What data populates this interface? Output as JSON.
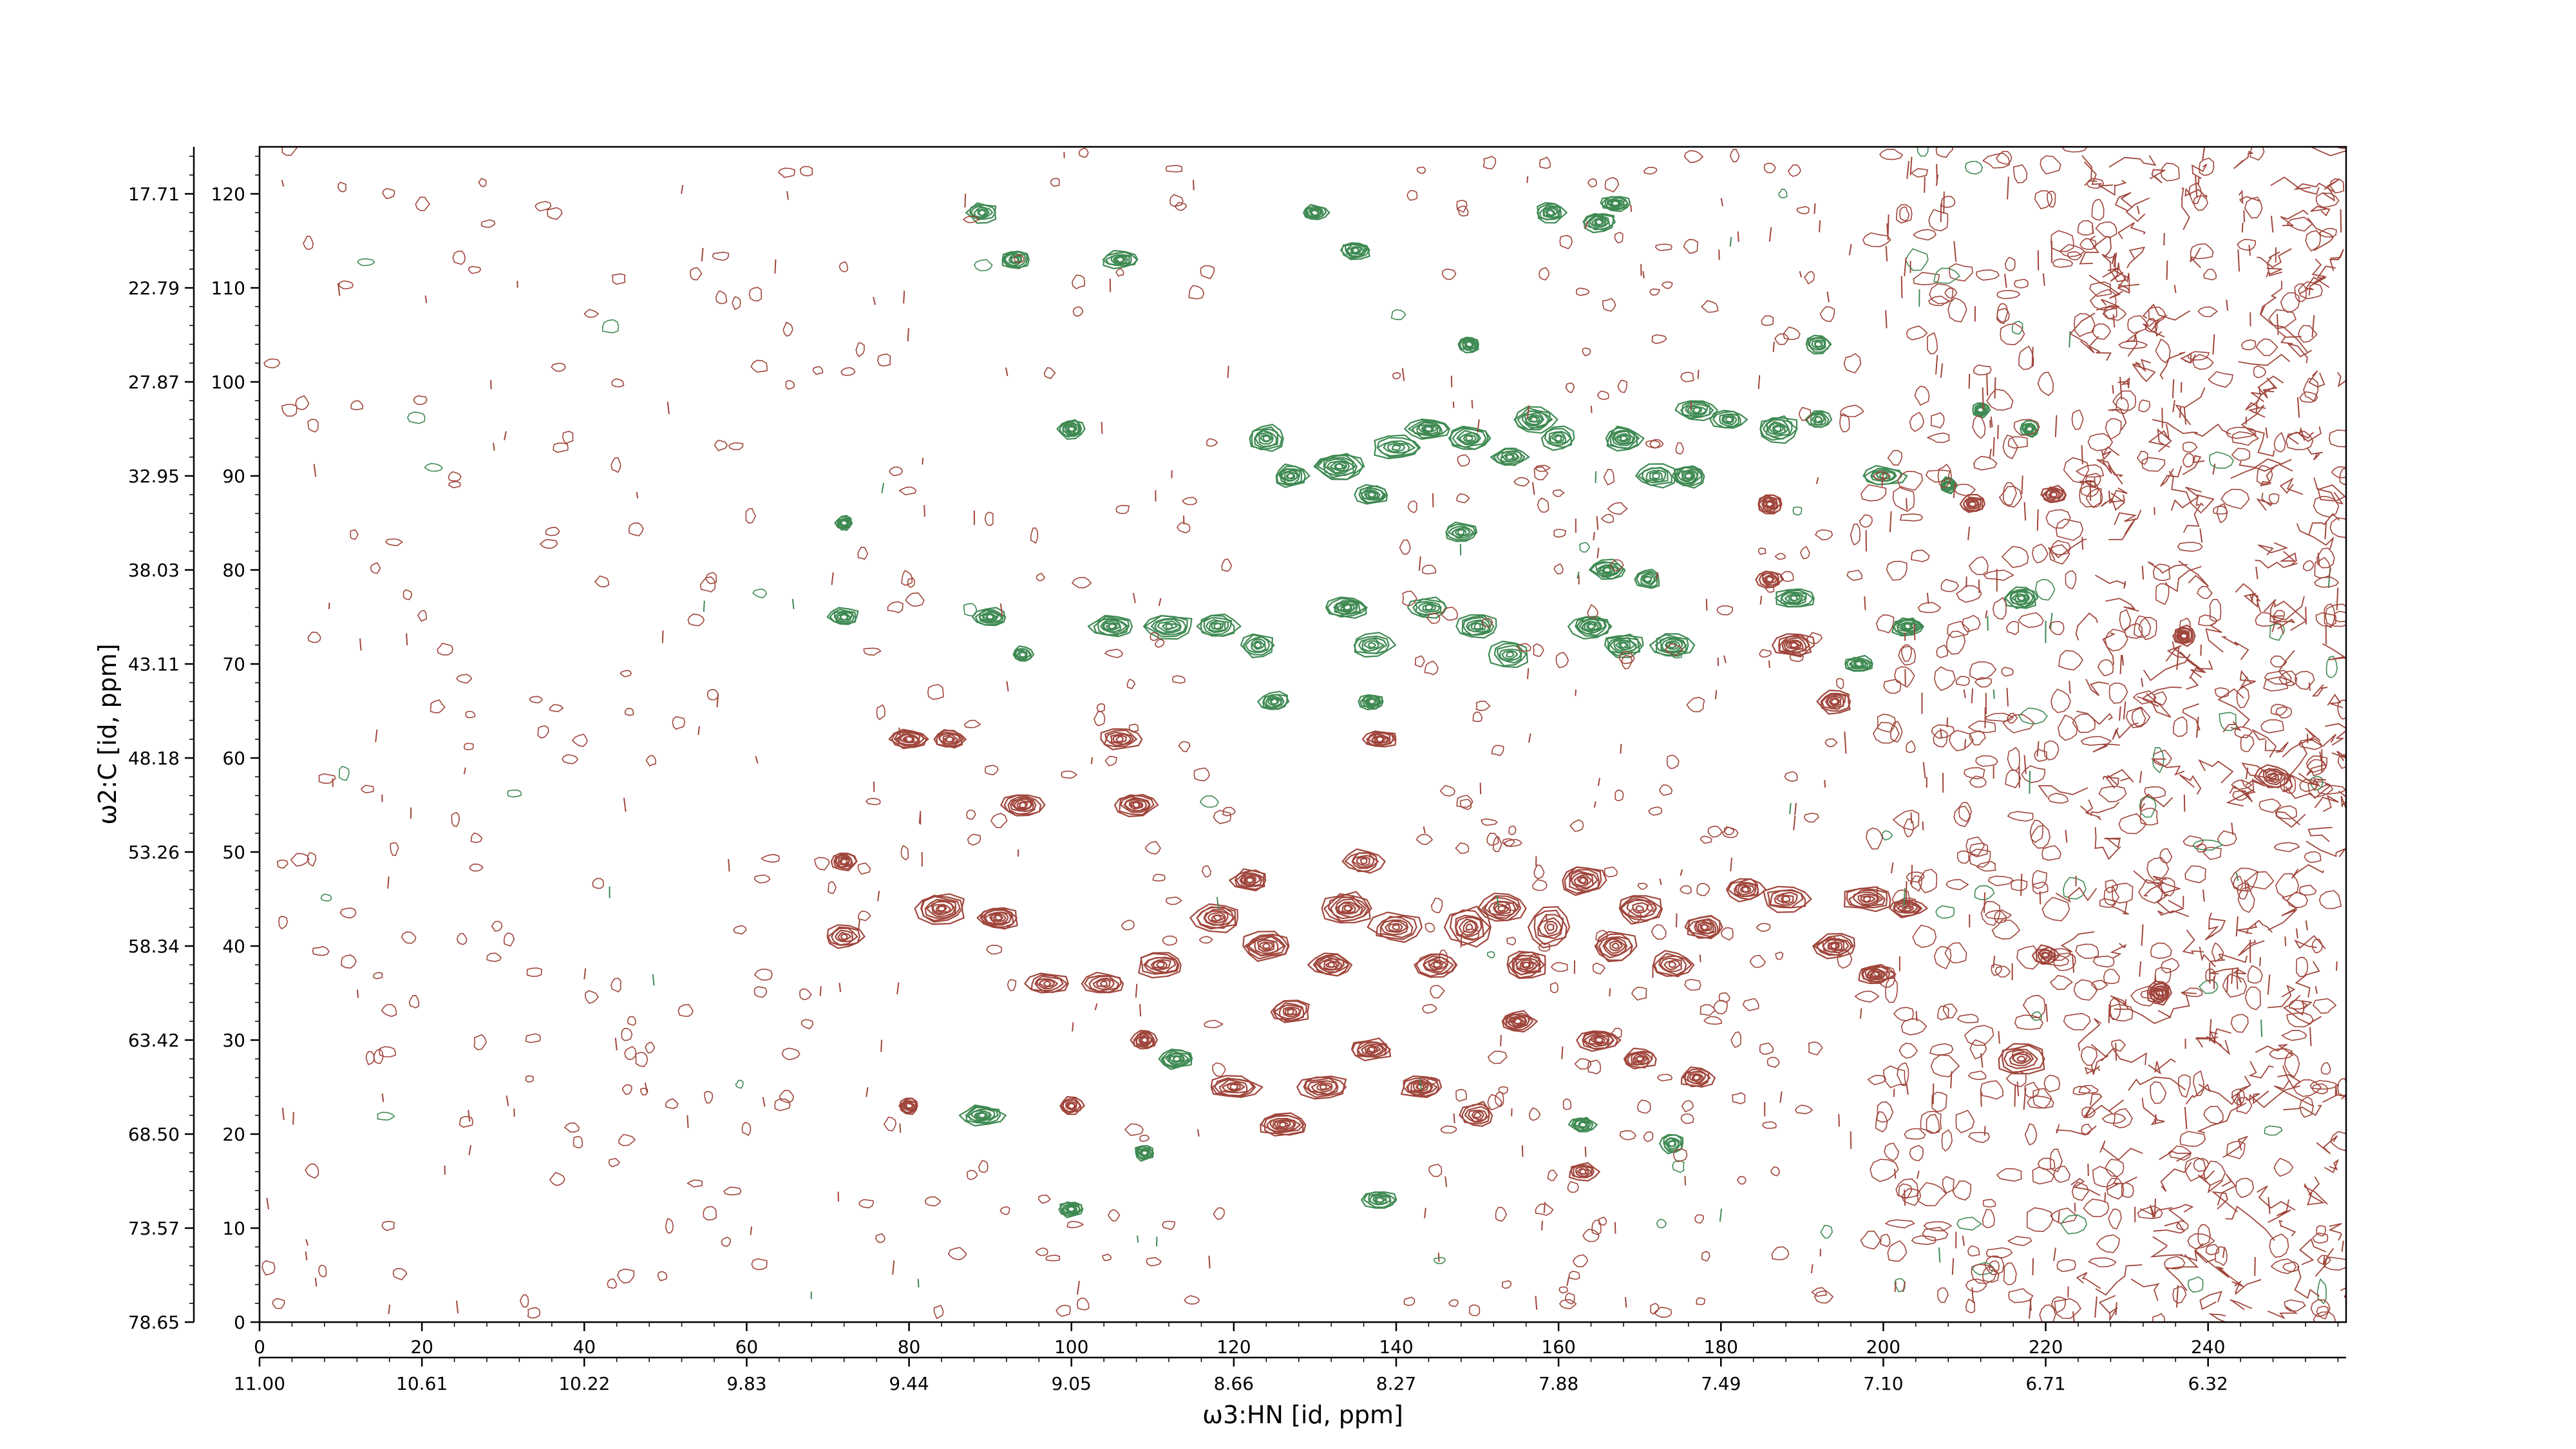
{
  "chart_data": {
    "type": "heatmap",
    "subtype": "2D NMR contour plot",
    "x_axis": {
      "label": "ω3:HN [id, ppm]",
      "index_ticks": [
        "0",
        "20",
        "40",
        "60",
        "80",
        "100",
        "120",
        "140",
        "160",
        "180",
        "200",
        "220",
        "240"
      ],
      "index_range": [
        0,
        257
      ],
      "ppm_ticks": [
        "11.00",
        "10.61",
        "10.22",
        "9.83",
        "9.44",
        "9.05",
        "8.66",
        "8.27",
        "7.88",
        "7.49",
        "7.10",
        "6.71",
        "6.32"
      ]
    },
    "y_axis": {
      "label": "ω2:C [id, ppm]",
      "index_ticks": [
        "0",
        "10",
        "20",
        "30",
        "40",
        "50",
        "60",
        "70",
        "80",
        "90",
        "100",
        "110",
        "120"
      ],
      "index_range": [
        0,
        125
      ],
      "ppm_ticks": [
        "78.65",
        "73.57",
        "68.50",
        "63.42",
        "58.34",
        "53.26",
        "48.18",
        "43.11",
        "38.03",
        "32.95",
        "27.87",
        "22.79",
        "17.71"
      ]
    },
    "series": [
      {
        "sign": "positive",
        "color": "#a0463c",
        "peaks": [
          [
            72,
            41,
            2.2,
            1.2
          ],
          [
            72,
            49,
            1.5,
            0.9
          ],
          [
            84,
            44,
            3.0,
            1.5
          ],
          [
            91,
            43,
            2.5,
            1.2
          ],
          [
            80,
            62,
            2.2,
            1.0
          ],
          [
            85,
            62,
            2.0,
            1.0
          ],
          [
            94,
            55,
            2.5,
            1.2
          ],
          [
            108,
            55,
            2.5,
            1.1
          ],
          [
            97,
            36,
            2.5,
            1.1
          ],
          [
            104,
            36,
            2.5,
            1.1
          ],
          [
            111,
            38,
            3.0,
            1.3
          ],
          [
            118,
            43,
            3.0,
            1.4
          ],
          [
            122,
            47,
            2.2,
            1.1
          ],
          [
            124,
            40,
            3.0,
            1.5
          ],
          [
            127,
            33,
            2.5,
            1.2
          ],
          [
            132,
            38,
            2.5,
            1.2
          ],
          [
            134,
            44,
            3.0,
            1.6
          ],
          [
            136,
            49,
            2.4,
            1.2
          ],
          [
            140,
            42,
            3.0,
            1.5
          ],
          [
            145,
            38,
            2.5,
            1.3
          ],
          [
            149,
            42,
            2.6,
            2.0
          ],
          [
            153,
            44,
            2.6,
            1.5
          ],
          [
            156,
            38,
            2.5,
            1.4
          ],
          [
            159,
            42,
            2.5,
            2.0
          ],
          [
            163,
            47,
            2.6,
            1.5
          ],
          [
            167,
            40,
            2.6,
            1.6
          ],
          [
            170,
            44,
            3.0,
            1.6
          ],
          [
            174,
            38,
            2.5,
            1.4
          ],
          [
            178,
            42,
            2.4,
            1.2
          ],
          [
            183,
            46,
            2.2,
            1.2
          ],
          [
            188,
            45,
            3.0,
            1.3
          ],
          [
            194,
            40,
            2.5,
            1.2
          ],
          [
            198,
            45,
            3.0,
            1.2
          ],
          [
            203,
            44,
            2.2,
            0.9
          ],
          [
            199,
            37,
            2.2,
            1.0
          ],
          [
            106,
            62,
            2.5,
            1.0
          ],
          [
            138,
            62,
            2.0,
            0.9
          ],
          [
            109,
            30,
            1.5,
            1.0
          ],
          [
            120,
            25,
            3.0,
            1.2
          ],
          [
            126,
            21,
            3.0,
            1.2
          ],
          [
            131,
            25,
            3.0,
            1.2
          ],
          [
            137,
            29,
            2.5,
            1.1
          ],
          [
            143,
            25,
            2.5,
            1.1
          ],
          [
            150,
            22,
            2.0,
            1.3
          ],
          [
            155,
            32,
            2.0,
            1.0
          ],
          [
            165,
            30,
            2.5,
            1.1
          ],
          [
            170,
            28,
            2.0,
            1.0
          ],
          [
            177,
            26,
            2.0,
            1.0
          ],
          [
            163,
            16,
            1.8,
            0.9
          ],
          [
            100,
            23,
            1.5,
            0.9
          ],
          [
            80,
            23,
            1.2,
            0.8
          ],
          [
            217,
            28,
            3.0,
            1.6
          ],
          [
            220,
            39,
            1.5,
            1.0
          ],
          [
            186,
            87,
            1.5,
            1.0
          ],
          [
            189,
            72,
            2.5,
            1.2
          ],
          [
            194,
            66,
            2.0,
            1.2
          ],
          [
            186,
            79,
            1.5,
            0.9
          ],
          [
            221,
            88,
            1.5,
            0.9
          ],
          [
            211,
            87,
            1.5,
            0.9
          ],
          [
            234,
            35,
            1.5,
            1.2
          ],
          [
            248,
            58,
            2.0,
            1.2
          ],
          [
            237,
            73,
            1.2,
            1.0
          ]
        ]
      },
      {
        "sign": "negative",
        "color": "#3f8a53",
        "peaks": [
          [
            89,
            118,
            1.8,
            1.0
          ],
          [
            93,
            113,
            1.8,
            1.0
          ],
          [
            106,
            113,
            2.2,
            0.9
          ],
          [
            130,
            118,
            1.5,
            0.8
          ],
          [
            135,
            114,
            1.8,
            0.9
          ],
          [
            159,
            118,
            1.8,
            1.0
          ],
          [
            165,
            117,
            2.0,
            1.0
          ],
          [
            167,
            119,
            1.8,
            0.8
          ],
          [
            192,
            104,
            1.5,
            0.9
          ],
          [
            149,
            104,
            1.2,
            0.8
          ],
          [
            100,
            95,
            1.5,
            1.0
          ],
          [
            124,
            94,
            2.2,
            1.4
          ],
          [
            127,
            90,
            2.0,
            1.2
          ],
          [
            133,
            91,
            3.0,
            1.4
          ],
          [
            140,
            93,
            3.0,
            1.2
          ],
          [
            137,
            88,
            2.0,
            1.0
          ],
          [
            144,
            95,
            2.5,
            1.0
          ],
          [
            149,
            94,
            2.5,
            1.3
          ],
          [
            148,
            84,
            2.0,
            1.0
          ],
          [
            154,
            92,
            2.0,
            1.0
          ],
          [
            157,
            96,
            2.5,
            1.3
          ],
          [
            160,
            94,
            2.0,
            1.2
          ],
          [
            168,
            94,
            2.2,
            1.2
          ],
          [
            172,
            90,
            2.5,
            1.2
          ],
          [
            176,
            90,
            2.0,
            1.2
          ],
          [
            177,
            97,
            2.5,
            1.0
          ],
          [
            181,
            96,
            2.0,
            1.0
          ],
          [
            187,
            95,
            2.5,
            1.4
          ],
          [
            192,
            96,
            1.5,
            1.0
          ],
          [
            200,
            90,
            2.5,
            1.0
          ],
          [
            212,
            97,
            1.0,
            0.8
          ],
          [
            218,
            95,
            1.0,
            0.8
          ],
          [
            217,
            77,
            2.0,
            1.2
          ],
          [
            189,
            77,
            2.5,
            1.0
          ],
          [
            203,
            74,
            2.0,
            0.9
          ],
          [
            112,
            74,
            3.0,
            1.2
          ],
          [
            105,
            74,
            2.5,
            1.1
          ],
          [
            118,
            74,
            2.5,
            1.2
          ],
          [
            123,
            72,
            2.0,
            1.2
          ],
          [
            134,
            76,
            2.5,
            1.0
          ],
          [
            137,
            72,
            2.5,
            1.2
          ],
          [
            144,
            76,
            2.5,
            1.0
          ],
          [
            150,
            74,
            2.5,
            1.2
          ],
          [
            154,
            71,
            2.5,
            1.3
          ],
          [
            164,
            74,
            2.5,
            1.2
          ],
          [
            168,
            72,
            2.5,
            1.2
          ],
          [
            174,
            72,
            2.5,
            1.2
          ],
          [
            166,
            80,
            2.0,
            1.0
          ],
          [
            171,
            79,
            1.5,
            1.0
          ],
          [
            197,
            70,
            2.0,
            0.8
          ],
          [
            72,
            75,
            1.8,
            0.9
          ],
          [
            90,
            75,
            2.0,
            0.9
          ],
          [
            94,
            71,
            1.2,
            0.8
          ],
          [
            125,
            66,
            1.8,
            1.0
          ],
          [
            137,
            66,
            1.5,
            0.8
          ],
          [
            109,
            18,
            1.2,
            0.8
          ],
          [
            113,
            28,
            2.0,
            1.0
          ],
          [
            89,
            22,
            2.5,
            1.0
          ],
          [
            100,
            12,
            1.5,
            0.8
          ],
          [
            138,
            13,
            2.0,
            1.0
          ],
          [
            163,
            21,
            1.5,
            0.8
          ],
          [
            174,
            19,
            1.5,
            1.0
          ],
          [
            72,
            85,
            1.0,
            0.8
          ],
          [
            208,
            89,
            1.0,
            0.8
          ]
        ]
      }
    ],
    "legend": "none",
    "grid": false
  }
}
